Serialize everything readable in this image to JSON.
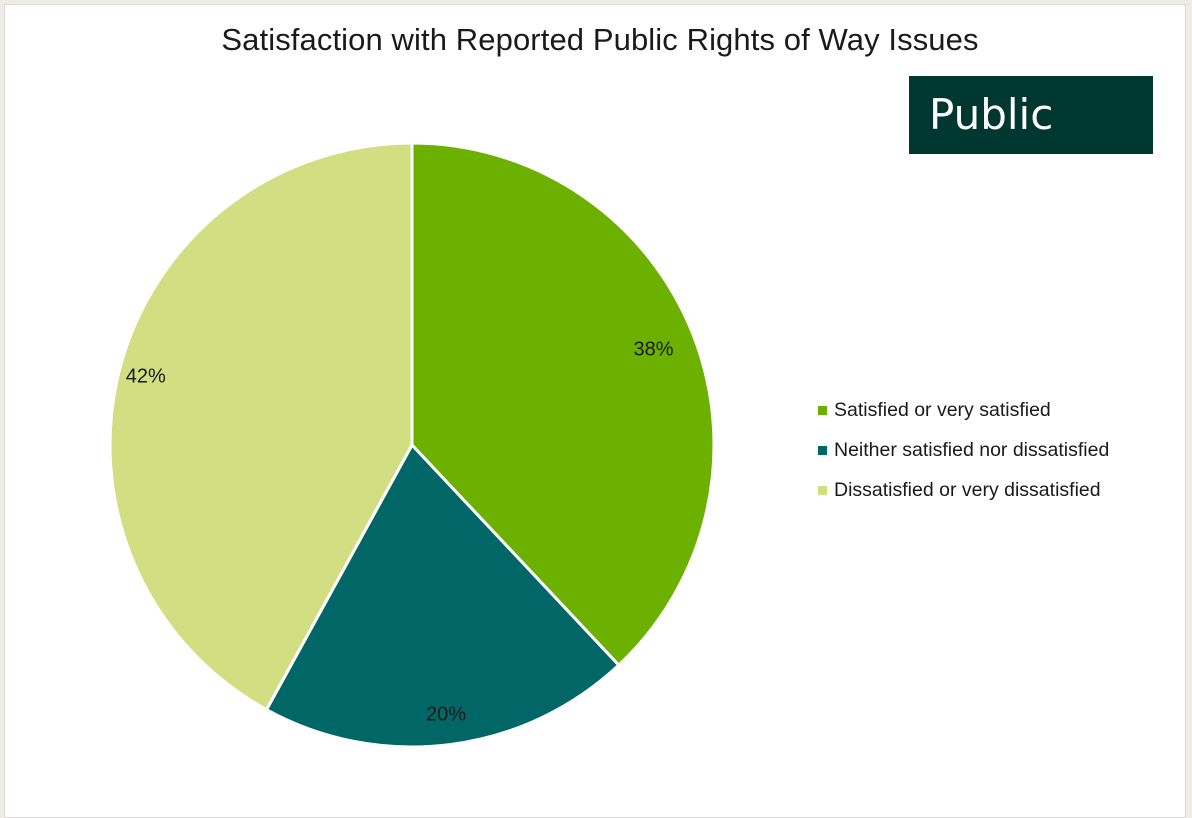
{
  "badge": {
    "label": "Public",
    "color": "#003831"
  },
  "chart_data": {
    "type": "pie",
    "title": "Satisfaction with Reported Public Rights of Way Issues",
    "categories": [
      "Satisfied or very satisfied",
      "Neither satisfied nor dissatisfied",
      "Dissatisfied or very dissatisfied"
    ],
    "values": [
      38,
      20,
      42
    ],
    "labels": [
      "38%",
      "20%",
      "42%"
    ],
    "colors": [
      "#6cb000",
      "#006666",
      "#d1df82"
    ],
    "legend_position": "right",
    "start_angle": "12 o'clock, clockwise"
  }
}
